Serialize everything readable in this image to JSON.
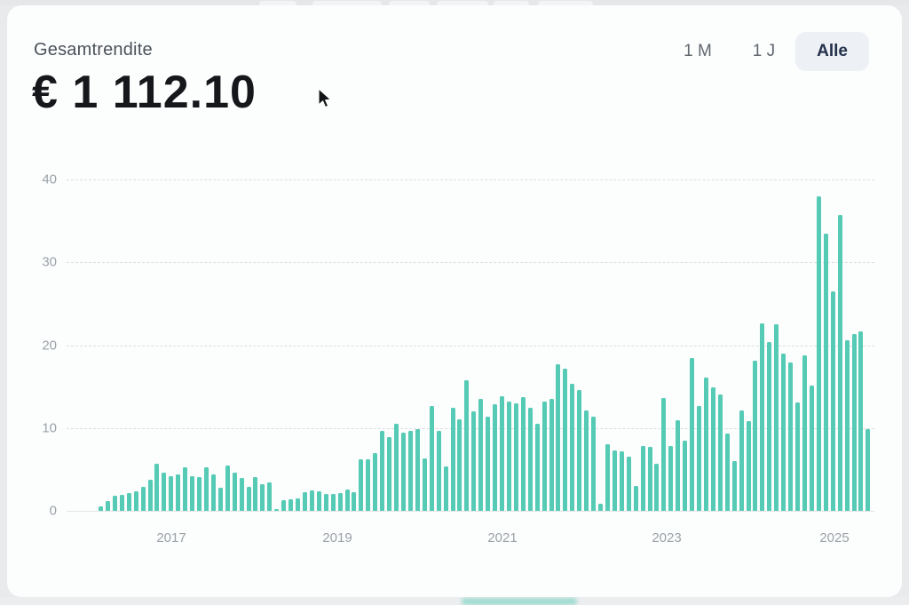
{
  "card": {
    "title": "Gesamtrendite",
    "amount": "€ 1 112.10",
    "range_selector": {
      "options": [
        {
          "label": "1 M",
          "active": false
        },
        {
          "label": "1 J",
          "active": false
        },
        {
          "label": "Alle",
          "active": true
        }
      ]
    }
  },
  "chart_data": {
    "type": "bar",
    "title": "",
    "xlabel": "",
    "ylabel": "",
    "x_tick_labels": [
      "2017",
      "2019",
      "2021",
      "2023",
      "2025"
    ],
    "y_tick_labels": [
      "0",
      "10",
      "20",
      "30",
      "40"
    ],
    "y_ticks": [
      0,
      10,
      20,
      30,
      40
    ],
    "ylim": [
      0,
      40
    ],
    "grid": "horizontal-dashed",
    "legend": "none",
    "bar_color": "#55cbb5",
    "frequency": "monthly",
    "values": [
      0.5,
      1.2,
      1.8,
      1.9,
      2.2,
      2.4,
      2.9,
      3.8,
      5.7,
      4.6,
      4.2,
      4.4,
      5.3,
      4.2,
      4.1,
      5.3,
      4.4,
      2.8,
      5.5,
      4.6,
      4.0,
      2.9,
      4.1,
      3.2,
      3.4,
      0.2,
      1.3,
      1.4,
      1.5,
      2.3,
      2.5,
      2.4,
      2.0,
      2.0,
      2.2,
      2.6,
      2.3,
      6.2,
      6.2,
      7.0,
      9.6,
      8.9,
      10.5,
      9.4,
      9.6,
      9.9,
      6.3,
      12.7,
      9.7,
      5.4,
      12.4,
      11.1,
      15.8,
      12.0,
      13.5,
      11.4,
      12.9,
      13.8,
      13.2,
      13.0,
      13.7,
      12.4,
      10.5,
      13.2,
      13.5,
      17.7,
      17.2,
      15.3,
      14.6,
      12.1,
      11.4,
      0.9,
      8.0,
      7.3,
      7.2,
      6.5,
      3.0,
      7.8,
      7.7,
      5.7,
      13.6,
      7.8,
      10.9,
      8.5,
      18.5,
      12.7,
      16.1,
      14.9,
      14.0,
      9.3,
      6.0,
      12.1,
      10.8,
      18.1,
      22.6,
      20.4,
      22.5,
      19.0,
      17.9,
      13.1,
      18.8,
      15.1,
      38.0,
      33.5,
      26.5,
      35.7,
      20.6,
      21.3,
      21.7,
      9.9
    ]
  },
  "colors": {
    "bar": "#55cbb5",
    "card_background": "#fcfdfd",
    "page_background": "#e9eaec",
    "active_pill_background": "#edf0f4",
    "amount_text": "#15171a",
    "muted_text": "#9ba1a8"
  }
}
